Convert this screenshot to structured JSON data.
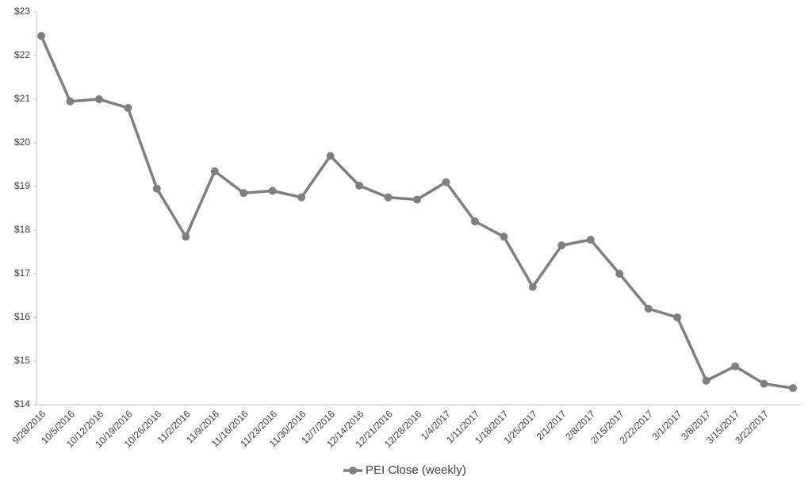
{
  "chart_data": {
    "type": "line",
    "categories": [
      "9/28/2016",
      "10/5/2016",
      "10/12/2016",
      "10/19/2016",
      "10/26/2016",
      "11/2/2016",
      "11/9/2016",
      "11/16/2016",
      "11/23/2016",
      "11/30/2016",
      "12/7/2016",
      "12/14/2016",
      "12/21/2016",
      "12/28/2016",
      "1/4/2017",
      "1/11/2017",
      "1/18/2017",
      "1/25/2017",
      "2/1/2017",
      "2/8/2017",
      "2/15/2017",
      "2/22/2017",
      "3/1/2017",
      "3/8/2017",
      "3/15/2017",
      "3/22/2017",
      null
    ],
    "series": [
      {
        "name": "PEI Close (weekly)",
        "color": "#7f7f7f",
        "values": [
          22.45,
          20.95,
          21.0,
          20.8,
          18.95,
          17.85,
          19.35,
          18.85,
          18.9,
          18.75,
          19.7,
          19.02,
          18.75,
          18.7,
          19.1,
          18.2,
          17.85,
          16.7,
          17.65,
          17.78,
          17.0,
          16.2,
          16.0,
          14.55,
          14.88,
          14.48,
          14.38
        ]
      }
    ],
    "ylim": [
      14,
      23
    ],
    "yticks": [
      {
        "value": 14,
        "label": "$14"
      },
      {
        "value": 15,
        "label": "$15"
      },
      {
        "value": 16,
        "label": "$16"
      },
      {
        "value": 17,
        "label": "$17"
      },
      {
        "value": 18,
        "label": "$18"
      },
      {
        "value": 19,
        "label": "$19"
      },
      {
        "value": 20,
        "label": "$20"
      },
      {
        "value": 21,
        "label": "$21"
      },
      {
        "value": 22,
        "label": "$22"
      },
      {
        "value": 23,
        "label": "$23"
      }
    ],
    "grid": false,
    "legend": "bottom"
  }
}
